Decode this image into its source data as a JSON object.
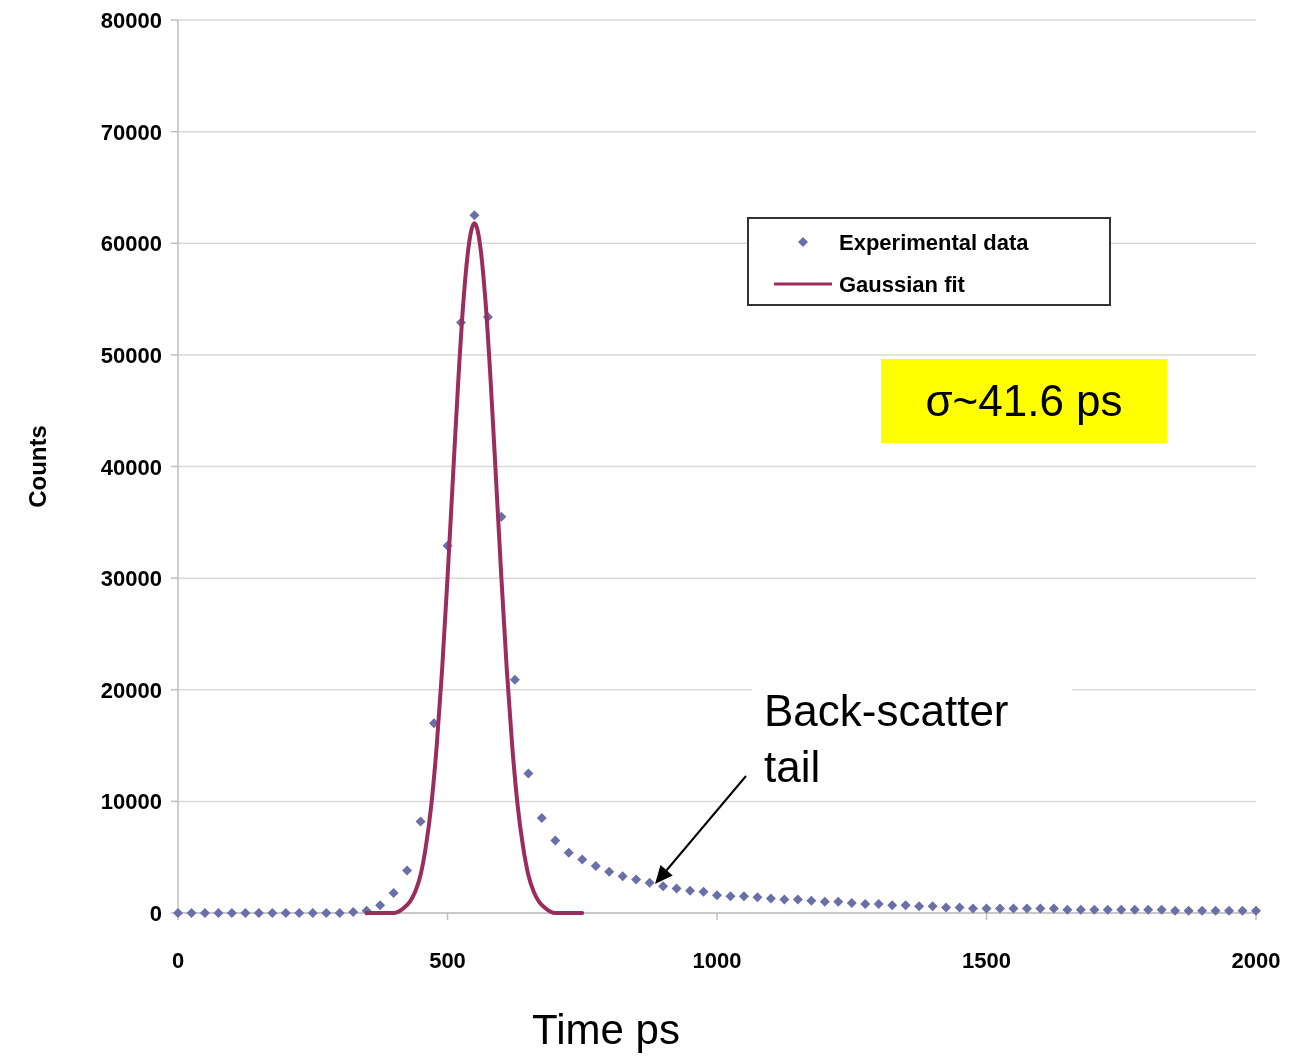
{
  "chart_data": {
    "type": "scatter",
    "xlabel": "Time ps",
    "ylabel": "Counts",
    "xlim": [
      0,
      2000
    ],
    "xticks": [
      0,
      500,
      1000,
      1500,
      2000
    ],
    "ylim": [
      0,
      80000
    ],
    "yticks": [
      0,
      10000,
      20000,
      30000,
      40000,
      50000,
      60000,
      70000,
      80000
    ],
    "grid": "y",
    "legend": "top right",
    "series": [
      {
        "name": "Experimental data",
        "marker": "diamond",
        "color": "#6b6fa8",
        "x": [
          0,
          25,
          50,
          75,
          100,
          125,
          150,
          175,
          200,
          225,
          250,
          275,
          300,
          325,
          350,
          375,
          400,
          425,
          450,
          475,
          500,
          525,
          550,
          575,
          600,
          625,
          650,
          675,
          700,
          725,
          750,
          775,
          800,
          825,
          850,
          875,
          900,
          925,
          950,
          975,
          1000,
          1025,
          1050,
          1075,
          1100,
          1125,
          1150,
          1175,
          1200,
          1225,
          1250,
          1275,
          1300,
          1325,
          1350,
          1375,
          1400,
          1425,
          1450,
          1475,
          1500,
          1525,
          1550,
          1575,
          1600,
          1625,
          1650,
          1675,
          1700,
          1725,
          1750,
          1775,
          1800,
          1825,
          1850,
          1875,
          1900,
          1925,
          1950,
          1975,
          2000
        ],
        "values": [
          0,
          0,
          0,
          0,
          0,
          0,
          0,
          0,
          0,
          0,
          0,
          0,
          0,
          100,
          200,
          700,
          1800,
          3800,
          8200,
          17000,
          32900,
          52900,
          62500,
          53400,
          35500,
          20900,
          12500,
          8500,
          6500,
          5400,
          4800,
          4200,
          3700,
          3300,
          3000,
          2700,
          2400,
          2200,
          2000,
          1900,
          1600,
          1500,
          1500,
          1400,
          1300,
          1200,
          1200,
          1100,
          1000,
          1000,
          900,
          800,
          800,
          700,
          700,
          600,
          600,
          500,
          500,
          400,
          400,
          400,
          400,
          400,
          400,
          400,
          300,
          300,
          300,
          300,
          300,
          300,
          300,
          300,
          200,
          200,
          200,
          200,
          200,
          200,
          200
        ]
      },
      {
        "name": "Gaussian fit",
        "type": "line",
        "marker": "none",
        "line_style": "solid",
        "color": "#9b2d5e",
        "x": [
          350,
          400,
          420,
          430,
          440,
          450,
          460,
          470,
          480,
          490,
          500,
          510,
          520,
          530,
          540,
          550,
          560,
          570,
          580,
          590,
          600,
          610,
          620,
          630,
          640,
          650,
          660,
          670,
          680,
          700,
          750
        ],
        "values": [
          0,
          0,
          500,
          1000,
          1900,
          3400,
          6000,
          9700,
          15000,
          21800,
          30000,
          38900,
          47700,
          55100,
          60000,
          61800,
          60000,
          55100,
          47700,
          38900,
          30000,
          21800,
          15000,
          9700,
          6000,
          3400,
          1900,
          1000,
          500,
          0,
          0
        ]
      }
    ],
    "annotations": [
      "σ~41.6 ps",
      "Back-scatter tail"
    ]
  }
}
